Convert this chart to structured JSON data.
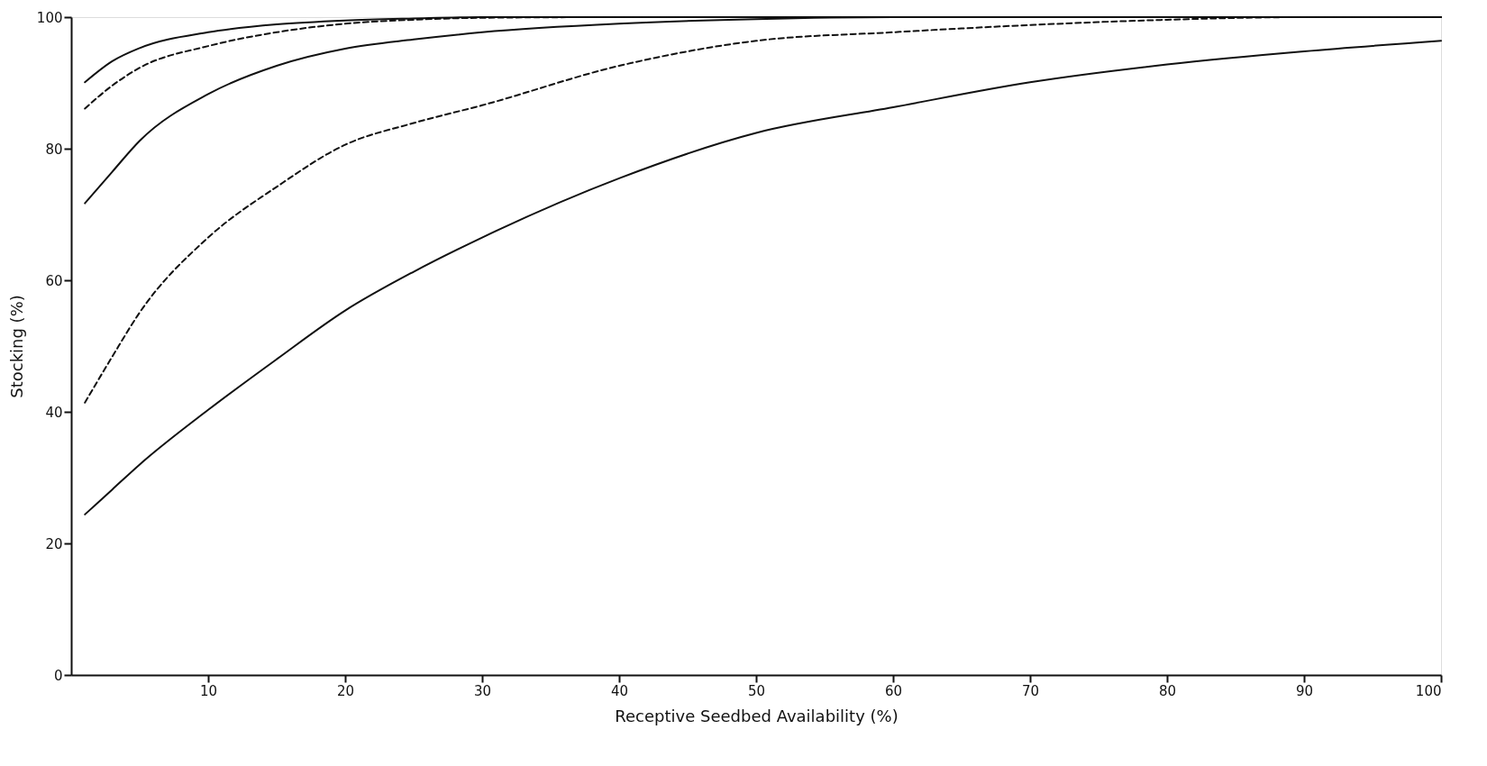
{
  "chart_data": {
    "type": "line",
    "xlabel": "Receptive  Seedbed  Availability    (%)",
    "ylabel": "Stocking   (%)",
    "xlim": [
      0,
      100
    ],
    "ylim": [
      0,
      100
    ],
    "xticks": [
      10,
      20,
      30,
      40,
      50,
      60,
      70,
      80,
      90,
      100
    ],
    "yticks": [
      0,
      20,
      40,
      60,
      80,
      100
    ],
    "grid": false,
    "marker": "none",
    "series": [
      {
        "color": "#111111",
        "line_style": "solid",
        "x": [
          1,
          3,
          5,
          10,
          15,
          20,
          25,
          30,
          40,
          50,
          60,
          70,
          80,
          90,
          100
        ],
        "values": [
          90.1,
          93.3,
          95.3,
          97.7,
          98.9,
          99.5,
          99.8,
          100,
          100,
          100,
          100,
          100,
          100,
          100,
          100
        ]
      },
      {
        "color": "#111111",
        "line_style": "dashed",
        "x": [
          1,
          3,
          5,
          10,
          15,
          20,
          25,
          30,
          40,
          50,
          60,
          70,
          80,
          90,
          100
        ],
        "values": [
          86.1,
          89.6,
          92.3,
          95.6,
          97.7,
          99,
          99.6,
          99.9,
          100,
          100,
          100,
          100,
          100,
          100,
          100
        ]
      },
      {
        "color": "#111111",
        "line_style": "solid",
        "x": [
          1,
          3,
          5,
          10,
          15,
          20,
          25,
          30,
          40,
          50,
          60,
          70,
          80,
          90,
          100
        ],
        "values": [
          71.7,
          76.5,
          81.2,
          88.3,
          92.6,
          95.2,
          96.6,
          97.7,
          99,
          99.7,
          100,
          100,
          100,
          100,
          100
        ]
      },
      {
        "color": "#111111",
        "line_style": "dashed",
        "x": [
          1,
          3,
          5,
          10,
          15,
          20,
          25,
          30,
          40,
          50,
          60,
          70,
          80,
          90,
          100
        ],
        "values": [
          41.4,
          48.4,
          55.1,
          66.5,
          74.2,
          80.6,
          83.9,
          86.6,
          92.6,
          96.4,
          97.7,
          98.8,
          99.6,
          100,
          100
        ]
      },
      {
        "color": "#111111",
        "line_style": "solid",
        "x": [
          1,
          3,
          5,
          10,
          15,
          20,
          25,
          30,
          40,
          50,
          60,
          70,
          80,
          90,
          100
        ],
        "values": [
          24.4,
          28.2,
          32,
          40.3,
          48,
          55.4,
          61.3,
          66.5,
          75.5,
          82.4,
          86.3,
          90.1,
          92.8,
          94.8,
          96.4
        ]
      }
    ]
  }
}
